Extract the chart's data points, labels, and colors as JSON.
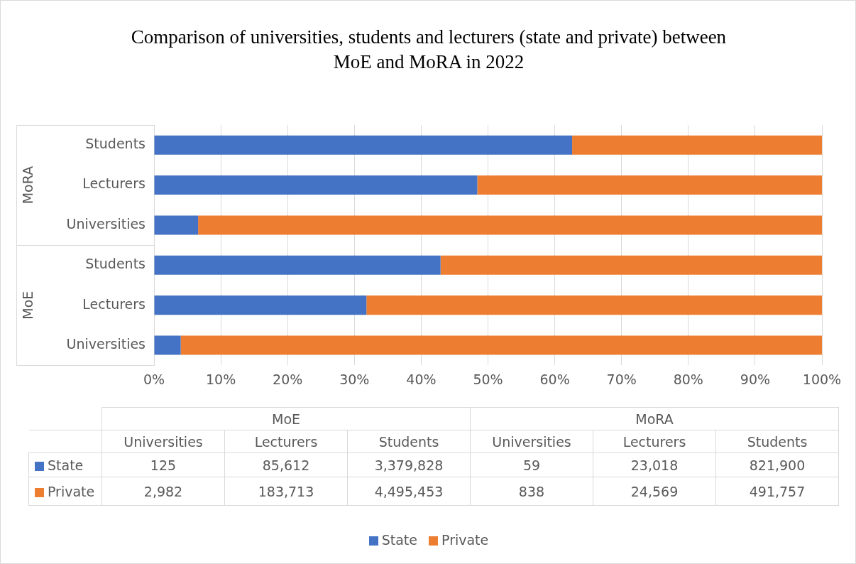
{
  "chart_data": [
    {
      "type": "bar",
      "title": "Comparison of universities, students and lecturers (state and private) between MoE and MoRA in 2022",
      "orientation": "horizontal",
      "stacked": true,
      "grid": "x",
      "legend": "bottom",
      "categories": [
        "Students",
        "Lecturers",
        "Universities",
        "Students",
        "Lecturers",
        "Universities"
      ],
      "annotations": [
        "MoRA",
        "MoE"
      ],
      "xlim": [
        0,
        100
      ],
      "xticks": [
        {
          "value": 0,
          "label": "0%"
        },
        {
          "value": 10,
          "label": "10%"
        },
        {
          "value": 20,
          "label": "20%"
        },
        {
          "value": 30,
          "label": "30%"
        },
        {
          "value": 40,
          "label": "40%"
        },
        {
          "value": 50,
          "label": "50%"
        },
        {
          "value": 60,
          "label": "60%"
        },
        {
          "value": 70,
          "label": "70%"
        },
        {
          "value": 80,
          "label": "80%"
        },
        {
          "value": 90,
          "label": "90%"
        },
        {
          "value": 100,
          "label": "100%"
        }
      ],
      "series": [
        {
          "name": "State",
          "color": "#4472c4",
          "values": [
            62.6,
            48.4,
            6.6,
            42.9,
            31.8,
            4.0
          ]
        },
        {
          "name": "Private",
          "color": "#ed7d31",
          "values": [
            37.4,
            51.6,
            93.4,
            57.1,
            68.2,
            96.0
          ]
        }
      ]
    },
    {
      "type": "other",
      "categories": [
        "Universities",
        "Lecturers",
        "Students",
        "Universities",
        "Lecturers",
        "Students"
      ],
      "annotations": [
        "MoE",
        "MoRA"
      ],
      "y_categories": [
        "State",
        "Private"
      ],
      "cell_labels": [
        [
          "125",
          "85,612",
          "3,379,828",
          "59",
          "23,018",
          "821,900"
        ],
        [
          "2,982",
          "183,713",
          "4,495,453",
          "838",
          "24,569",
          "491,757"
        ]
      ]
    }
  ]
}
